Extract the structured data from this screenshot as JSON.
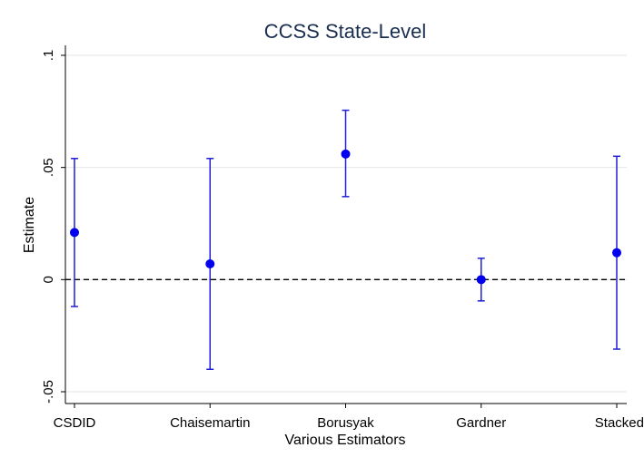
{
  "chart_data": {
    "type": "scatter",
    "title": "CCSS State-Level",
    "xlabel": "Various Estimators",
    "ylabel": "Estimate",
    "categories": [
      "CSDID",
      "Chaisemartin",
      "Borusyak",
      "Gardner",
      "Stacked"
    ],
    "series": [
      {
        "estimates": [
          0.021,
          0.007,
          0.056,
          0.0,
          0.012
        ],
        "ci_lower": [
          -0.012,
          -0.04,
          0.037,
          -0.0095,
          -0.031
        ],
        "ci_upper": [
          0.054,
          0.054,
          0.0755,
          0.0095,
          0.055
        ]
      }
    ],
    "ylim": [
      -0.055,
      0.105
    ],
    "yticks": [
      {
        "value": 0.1,
        "label": ".1"
      },
      {
        "value": 0.05,
        "label": ".05"
      },
      {
        "value": 0,
        "label": "0"
      },
      {
        "value": -0.05,
        "label": "-.05"
      }
    ],
    "reference_line": {
      "value": 0,
      "style": "dashed"
    },
    "grid": true,
    "colors": {
      "marker": "#0000ee",
      "error_bar": "#1f1fd6",
      "title": "#1a2e4f",
      "grid": "#e6e6e6"
    }
  }
}
